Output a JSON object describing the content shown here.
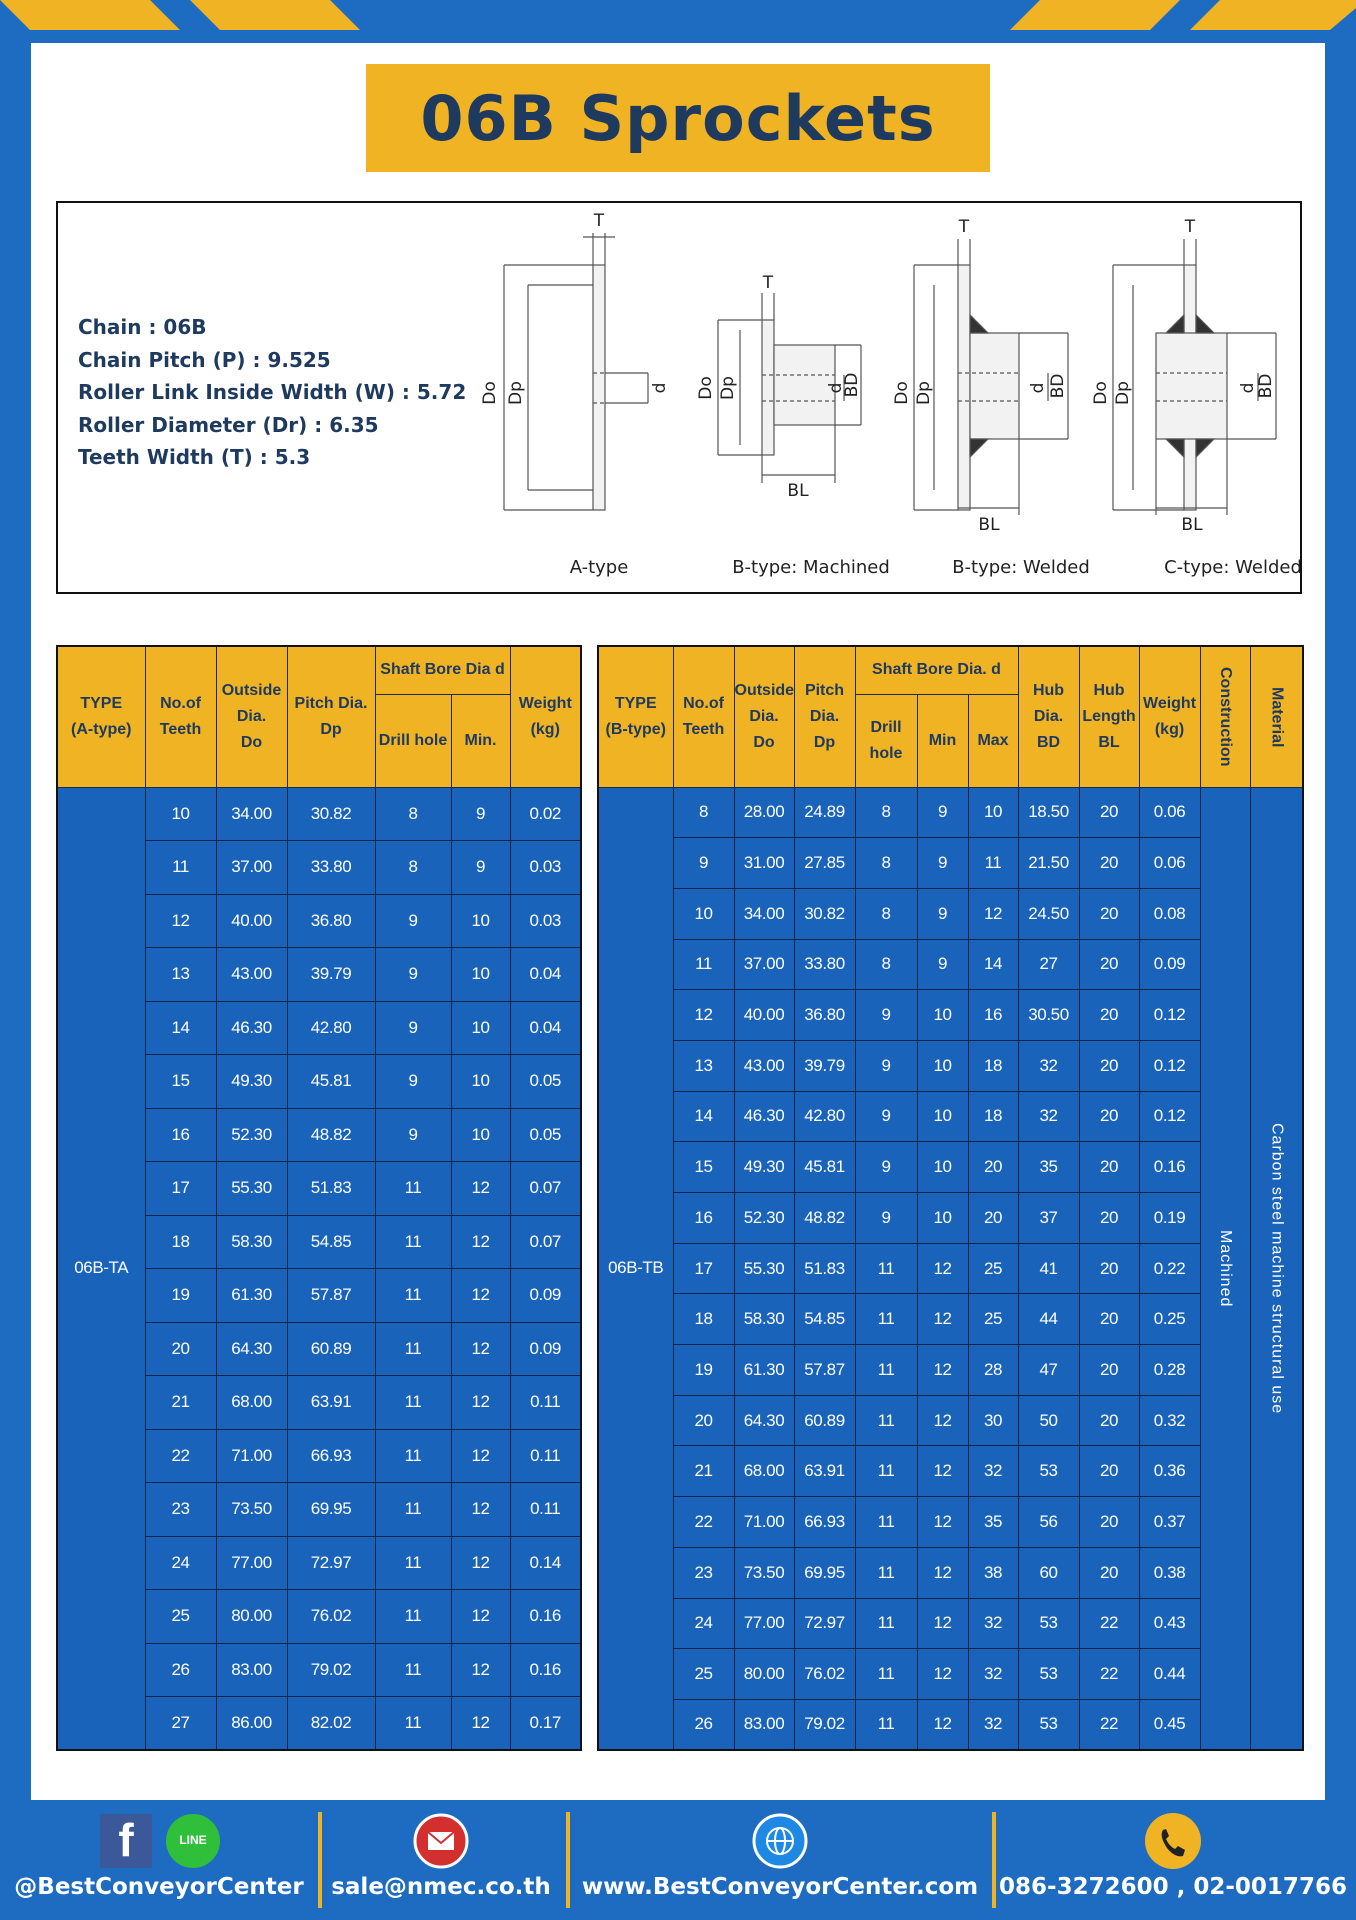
{
  "header": {
    "title": "06B Sprockets"
  },
  "specs": [
    "Chain  : 06B",
    "Chain Pitch (P)  :  9.525",
    "Roller Link Inside Width (W)  :  5.72",
    "Roller Diameter (Dr)  : 6.35",
    "Teeth Width (T)  :  5.3"
  ],
  "diagrams": [
    {
      "caption": "A-type",
      "dims": [
        "T",
        "Do",
        "Dp",
        "d"
      ]
    },
    {
      "caption": "B-type: Machined",
      "dims": [
        "T",
        "Do",
        "Dp",
        "d",
        "BD",
        "BL"
      ]
    },
    {
      "caption": "B-type: Welded",
      "dims": [
        "T",
        "Do",
        "Dp",
        "d",
        "BD",
        "BL"
      ]
    },
    {
      "caption": "C-type: Welded",
      "dims": [
        "T",
        "Do",
        "Dp",
        "d",
        "BD",
        "BL"
      ]
    }
  ],
  "table_a": {
    "header_top": [
      "TYPE\n(A-type)",
      "No.of\nTeeth",
      "Outside\nDia.\nDo",
      "Pitch Dia.\nDp",
      "Shaft Bore Dia d",
      "Weight\n(kg)"
    ],
    "header_sub": [
      "Drill hole",
      "Min."
    ],
    "type": "06B-TA",
    "rows": [
      [
        "10",
        "34.00",
        "30.82",
        "8",
        "9",
        "0.02"
      ],
      [
        "11",
        "37.00",
        "33.80",
        "8",
        "9",
        "0.03"
      ],
      [
        "12",
        "40.00",
        "36.80",
        "9",
        "10",
        "0.03"
      ],
      [
        "13",
        "43.00",
        "39.79",
        "9",
        "10",
        "0.04"
      ],
      [
        "14",
        "46.30",
        "42.80",
        "9",
        "10",
        "0.04"
      ],
      [
        "15",
        "49.30",
        "45.81",
        "9",
        "10",
        "0.05"
      ],
      [
        "16",
        "52.30",
        "48.82",
        "9",
        "10",
        "0.05"
      ],
      [
        "17",
        "55.30",
        "51.83",
        "11",
        "12",
        "0.07"
      ],
      [
        "18",
        "58.30",
        "54.85",
        "11",
        "12",
        "0.07"
      ],
      [
        "19",
        "61.30",
        "57.87",
        "11",
        "12",
        "0.09"
      ],
      [
        "20",
        "64.30",
        "60.89",
        "11",
        "12",
        "0.09"
      ],
      [
        "21",
        "68.00",
        "63.91",
        "11",
        "12",
        "0.11"
      ],
      [
        "22",
        "71.00",
        "66.93",
        "11",
        "12",
        "0.11"
      ],
      [
        "23",
        "73.50",
        "69.95",
        "11",
        "12",
        "0.11"
      ],
      [
        "24",
        "77.00",
        "72.97",
        "11",
        "12",
        "0.14"
      ],
      [
        "25",
        "80.00",
        "76.02",
        "11",
        "12",
        "0.16"
      ],
      [
        "26",
        "83.00",
        "79.02",
        "11",
        "12",
        "0.16"
      ],
      [
        "27",
        "86.00",
        "82.02",
        "11",
        "12",
        "0.17"
      ]
    ]
  },
  "table_b": {
    "header_top": [
      "TYPE\n(B-type)",
      "No.of\nTeeth",
      "Outside\nDia.\nDo",
      "Pitch\nDia.\nDp",
      "Shaft Bore Dia.  d",
      "Hub\nDia.\nBD",
      "Hub\nLength\nBL",
      "Weight\n(kg)",
      "Construction",
      "Material"
    ],
    "header_sub": [
      "Drill hole",
      "Min",
      "Max"
    ],
    "type": "06B-TB",
    "construction": "Machined",
    "material": "Carbon steel machine structural use",
    "rows": [
      [
        "8",
        "28.00",
        "24.89",
        "8",
        "9",
        "10",
        "18.50",
        "20",
        "0.06"
      ],
      [
        "9",
        "31.00",
        "27.85",
        "8",
        "9",
        "11",
        "21.50",
        "20",
        "0.06"
      ],
      [
        "10",
        "34.00",
        "30.82",
        "8",
        "9",
        "12",
        "24.50",
        "20",
        "0.08"
      ],
      [
        "11",
        "37.00",
        "33.80",
        "8",
        "9",
        "14",
        "27",
        "20",
        "0.09"
      ],
      [
        "12",
        "40.00",
        "36.80",
        "9",
        "10",
        "16",
        "30.50",
        "20",
        "0.12"
      ],
      [
        "13",
        "43.00",
        "39.79",
        "9",
        "10",
        "18",
        "32",
        "20",
        "0.12"
      ],
      [
        "14",
        "46.30",
        "42.80",
        "9",
        "10",
        "18",
        "32",
        "20",
        "0.12"
      ],
      [
        "15",
        "49.30",
        "45.81",
        "9",
        "10",
        "20",
        "35",
        "20",
        "0.16"
      ],
      [
        "16",
        "52.30",
        "48.82",
        "9",
        "10",
        "20",
        "37",
        "20",
        "0.19"
      ],
      [
        "17",
        "55.30",
        "51.83",
        "11",
        "12",
        "25",
        "41",
        "20",
        "0.22"
      ],
      [
        "18",
        "58.30",
        "54.85",
        "11",
        "12",
        "25",
        "44",
        "20",
        "0.25"
      ],
      [
        "19",
        "61.30",
        "57.87",
        "11",
        "12",
        "28",
        "47",
        "20",
        "0.28"
      ],
      [
        "20",
        "64.30",
        "60.89",
        "11",
        "12",
        "30",
        "50",
        "20",
        "0.32"
      ],
      [
        "21",
        "68.00",
        "63.91",
        "11",
        "12",
        "32",
        "53",
        "20",
        "0.36"
      ],
      [
        "22",
        "71.00",
        "66.93",
        "11",
        "12",
        "35",
        "56",
        "20",
        "0.37"
      ],
      [
        "23",
        "73.50",
        "69.95",
        "11",
        "12",
        "38",
        "60",
        "20",
        "0.38"
      ],
      [
        "24",
        "77.00",
        "72.97",
        "11",
        "12",
        "32",
        "53",
        "22",
        "0.43"
      ],
      [
        "25",
        "80.00",
        "76.02",
        "11",
        "12",
        "32",
        "53",
        "22",
        "0.44"
      ],
      [
        "26",
        "83.00",
        "79.02",
        "11",
        "12",
        "32",
        "53",
        "22",
        "0.45"
      ]
    ]
  },
  "footer": {
    "line_icon": "LINE",
    "contacts": [
      "@BestConveyorCenter",
      "sale@nmec.co.th",
      "www.BestConveyorCenter.com",
      "086-3272600 , 02-0017766"
    ]
  }
}
